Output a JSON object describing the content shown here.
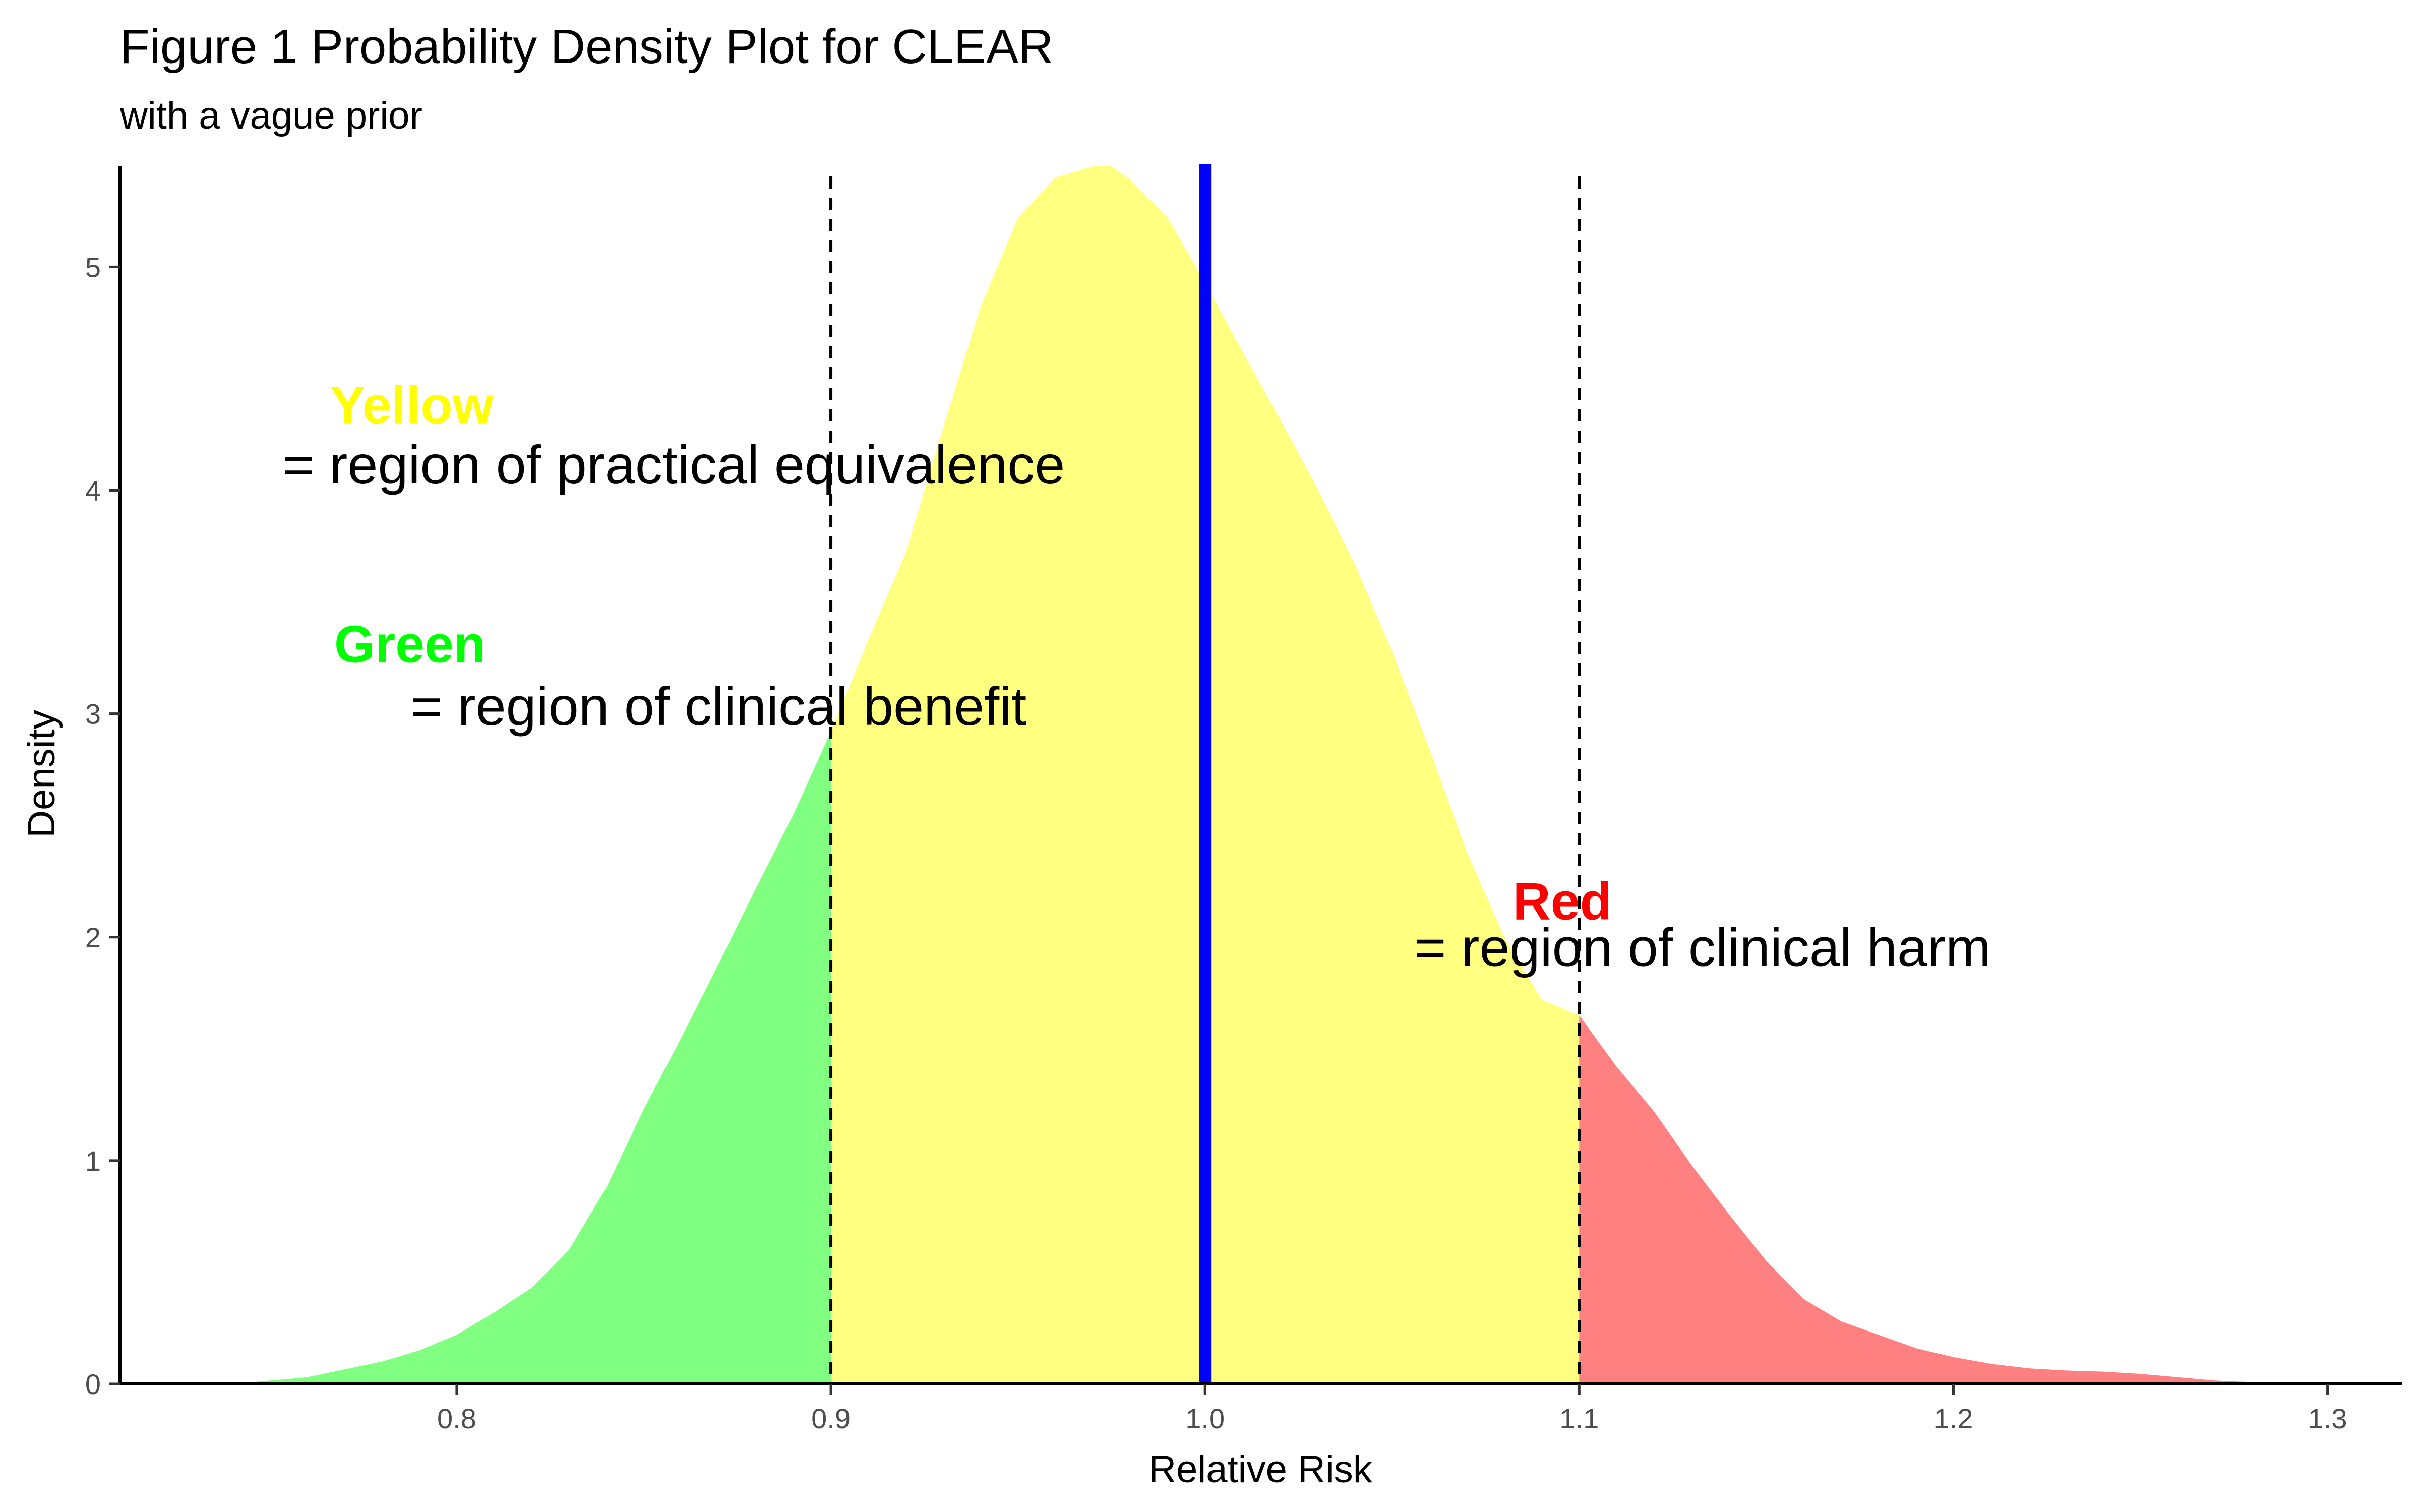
{
  "chart_data": {
    "type": "area",
    "title": "Figure 1 Probability Density Plot for CLEAR",
    "subtitle": "with a vague prior",
    "xlabel": "Relative Risk",
    "ylabel": "Density",
    "xlim": [
      0.71,
      1.32
    ],
    "ylim": [
      0,
      5.45
    ],
    "x_ticks": [
      0.8,
      0.9,
      1.0,
      1.1,
      1.2,
      1.3
    ],
    "x_tick_labels": [
      "0.8",
      "0.9",
      "1.0",
      "1.1",
      "1.2",
      "1.3"
    ],
    "y_ticks": [
      0,
      1,
      2,
      3,
      4,
      5
    ],
    "y_tick_labels": [
      "0",
      "1",
      "2",
      "3",
      "4",
      "5"
    ],
    "grid": false,
    "density": {
      "x": [
        0.74,
        0.76,
        0.78,
        0.79,
        0.8,
        0.81,
        0.82,
        0.83,
        0.84,
        0.85,
        0.86,
        0.87,
        0.88,
        0.89,
        0.9,
        0.91,
        0.92,
        0.93,
        0.94,
        0.95,
        0.96,
        0.97,
        0.975,
        0.98,
        0.99,
        1.0,
        1.01,
        1.02,
        1.03,
        1.04,
        1.05,
        1.06,
        1.07,
        1.08,
        1.09,
        1.1,
        1.11,
        1.12,
        1.13,
        1.14,
        1.15,
        1.16,
        1.17,
        1.18,
        1.19,
        1.2,
        1.21,
        1.22,
        1.23,
        1.24,
        1.25,
        1.26,
        1.27,
        1.28,
        1.29,
        1.3
      ],
      "y": [
        0.0,
        0.03,
        0.1,
        0.15,
        0.22,
        0.32,
        0.43,
        0.6,
        0.88,
        1.23,
        1.55,
        1.88,
        2.22,
        2.55,
        2.92,
        3.33,
        3.72,
        4.28,
        4.82,
        5.22,
        5.4,
        5.45,
        5.45,
        5.39,
        5.22,
        4.93,
        4.62,
        4.32,
        4.01,
        3.67,
        3.28,
        2.84,
        2.38,
        2.0,
        1.72,
        1.65,
        1.42,
        1.22,
        0.98,
        0.76,
        0.55,
        0.38,
        0.28,
        0.22,
        0.16,
        0.12,
        0.09,
        0.07,
        0.06,
        0.055,
        0.045,
        0.03,
        0.015,
        0.008,
        0.003,
        0.0
      ]
    },
    "regions": [
      {
        "name": "benefit",
        "from": 0.74,
        "to": 0.9,
        "color": "#80FF80"
      },
      {
        "name": "equivalence",
        "from": 0.9,
        "to": 1.1,
        "color": "#FFFF80"
      },
      {
        "name": "harm",
        "from": 1.1,
        "to": 1.3,
        "color": "#FF8080"
      }
    ],
    "dashed_lines": [
      0.9,
      1.1
    ],
    "solid_line": {
      "x": 1.0,
      "color": "#0000FF"
    },
    "annotations": [
      {
        "head": "Yellow",
        "head_color": "#FFFF00",
        "head_x": 0.788,
        "head_y": 4.3,
        "body": "= region of practical equivalence",
        "body_x": 0.858,
        "body_y": 4.03
      },
      {
        "head": "Green",
        "head_color": "#00FF00",
        "head_x": 0.7875,
        "head_y": 3.23,
        "body": "= region of clinical benefit",
        "body_x": 0.87,
        "body_y": 2.95
      },
      {
        "head": "Red",
        "head_color": "#FF0000",
        "head_x": 1.0955,
        "head_y": 2.08,
        "body": "= region of clinical harm",
        "body_x": 1.133,
        "body_y": 1.87
      }
    ]
  }
}
